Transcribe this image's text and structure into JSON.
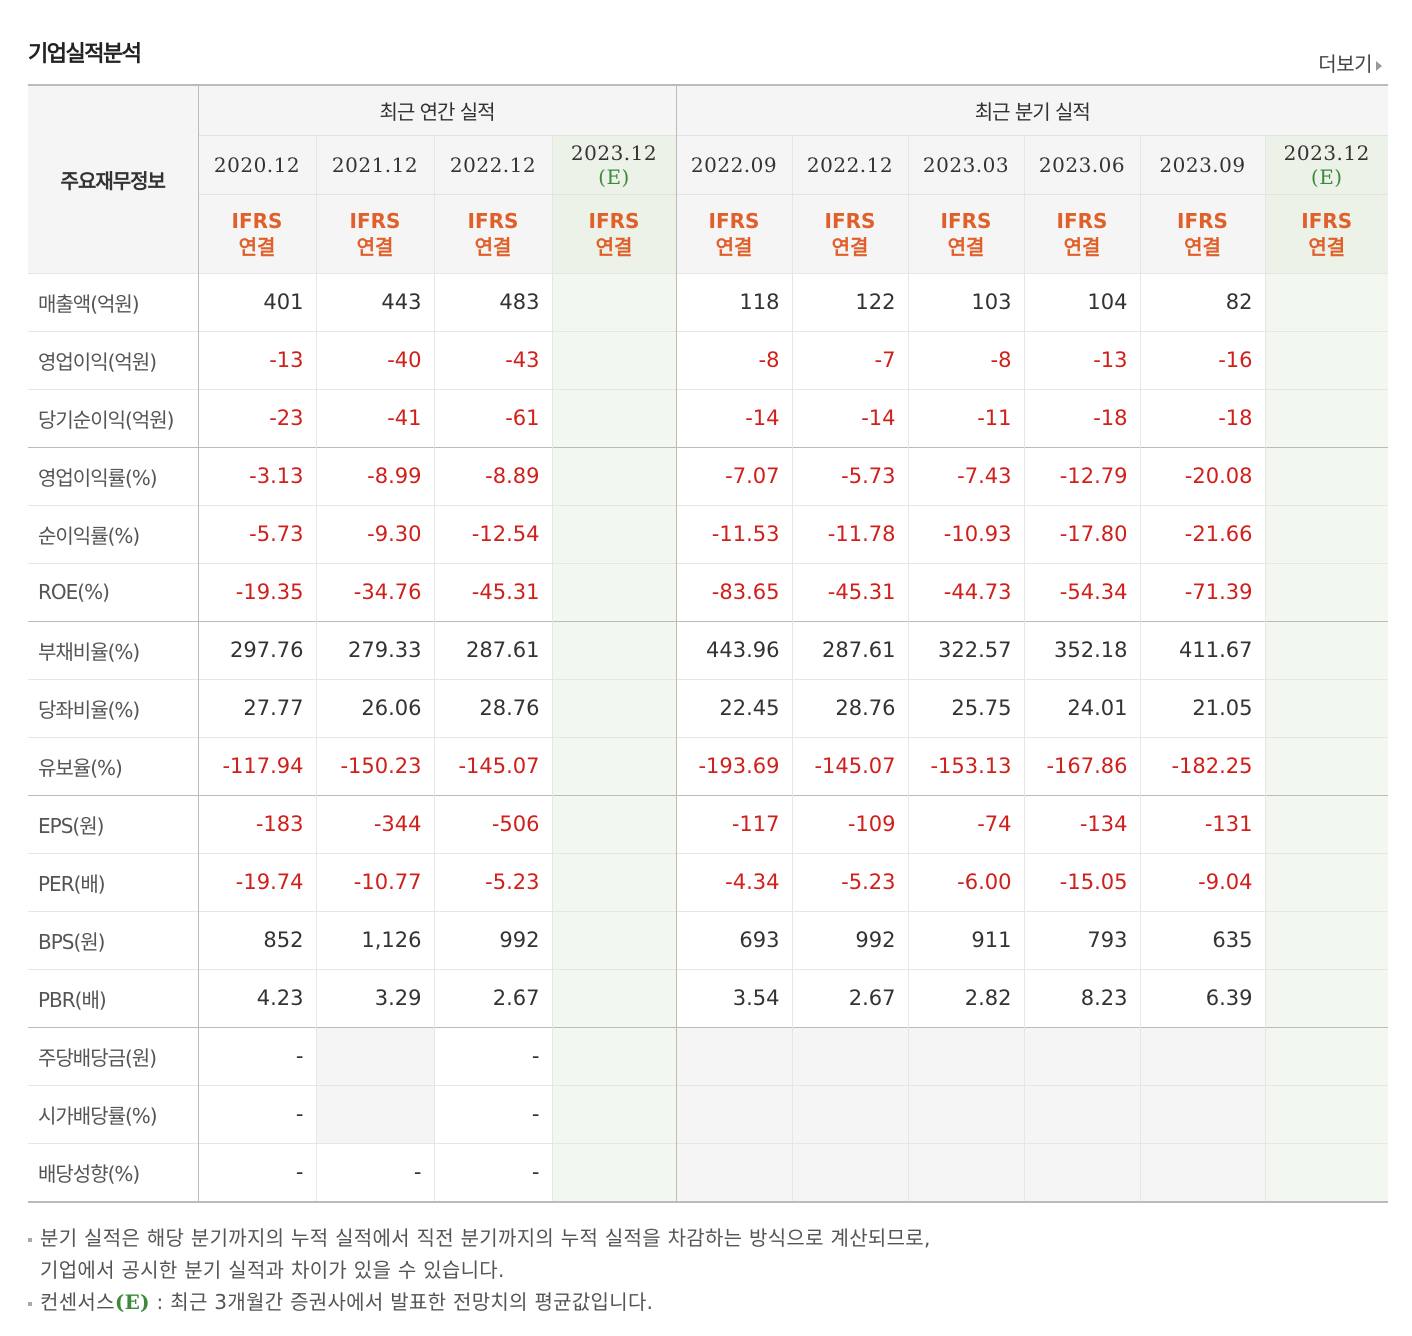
{
  "section_title": "기업실적분석",
  "more_link": "더보기",
  "header": {
    "corner": "주요재무정보",
    "annual_group": "최근 연간 실적",
    "quarter_group": "최근 분기 실적",
    "annual_periods": [
      "2020.12",
      "2021.12",
      "2022.12",
      "2023.12"
    ],
    "annual_est_flag": "(E)",
    "quarter_periods": [
      "2022.09",
      "2022.12",
      "2023.03",
      "2023.06",
      "2023.09",
      "2023.12"
    ],
    "quarter_est_flag": "(E)",
    "basis_line1": "IFRS",
    "basis_line2": "연결"
  },
  "rows": [
    {
      "label": "매출액(억원)",
      "annual": [
        "401",
        "443",
        "483",
        ""
      ],
      "quarter": [
        "118",
        "122",
        "103",
        "104",
        "82",
        ""
      ]
    },
    {
      "label": "영업이익(억원)",
      "annual": [
        "-13",
        "-40",
        "-43",
        ""
      ],
      "quarter": [
        "-8",
        "-7",
        "-8",
        "-13",
        "-16",
        ""
      ]
    },
    {
      "label": "당기순이익(억원)",
      "annual": [
        "-23",
        "-41",
        "-61",
        ""
      ],
      "quarter": [
        "-14",
        "-14",
        "-11",
        "-18",
        "-18",
        ""
      ]
    },
    {
      "label": "영업이익률(%)",
      "annual": [
        "-3.13",
        "-8.99",
        "-8.89",
        ""
      ],
      "quarter": [
        "-7.07",
        "-5.73",
        "-7.43",
        "-12.79",
        "-20.08",
        ""
      ]
    },
    {
      "label": "순이익률(%)",
      "annual": [
        "-5.73",
        "-9.30",
        "-12.54",
        ""
      ],
      "quarter": [
        "-11.53",
        "-11.78",
        "-10.93",
        "-17.80",
        "-21.66",
        ""
      ]
    },
    {
      "label": "ROE(%)",
      "annual": [
        "-19.35",
        "-34.76",
        "-45.31",
        ""
      ],
      "quarter": [
        "-83.65",
        "-45.31",
        "-44.73",
        "-54.34",
        "-71.39",
        ""
      ]
    },
    {
      "label": "부채비율(%)",
      "annual": [
        "297.76",
        "279.33",
        "287.61",
        ""
      ],
      "quarter": [
        "443.96",
        "287.61",
        "322.57",
        "352.18",
        "411.67",
        ""
      ]
    },
    {
      "label": "당좌비율(%)",
      "annual": [
        "27.77",
        "26.06",
        "28.76",
        ""
      ],
      "quarter": [
        "22.45",
        "28.76",
        "25.75",
        "24.01",
        "21.05",
        ""
      ]
    },
    {
      "label": "유보율(%)",
      "annual": [
        "-117.94",
        "-150.23",
        "-145.07",
        ""
      ],
      "quarter": [
        "-193.69",
        "-145.07",
        "-153.13",
        "-167.86",
        "-182.25",
        ""
      ]
    },
    {
      "label": "EPS(원)",
      "annual": [
        "-183",
        "-344",
        "-506",
        ""
      ],
      "quarter": [
        "-117",
        "-109",
        "-74",
        "-134",
        "-131",
        ""
      ]
    },
    {
      "label": "PER(배)",
      "annual": [
        "-19.74",
        "-10.77",
        "-5.23",
        ""
      ],
      "quarter": [
        "-4.34",
        "-5.23",
        "-6.00",
        "-15.05",
        "-9.04",
        ""
      ]
    },
    {
      "label": "BPS(원)",
      "annual": [
        "852",
        "1,126",
        "992",
        ""
      ],
      "quarter": [
        "693",
        "992",
        "911",
        "793",
        "635",
        ""
      ]
    },
    {
      "label": "PBR(배)",
      "annual": [
        "4.23",
        "3.29",
        "2.67",
        ""
      ],
      "quarter": [
        "3.54",
        "2.67",
        "2.82",
        "8.23",
        "6.39",
        ""
      ]
    },
    {
      "label": "주당배당금(원)",
      "annual": [
        "-",
        "",
        "-",
        ""
      ],
      "quarter": [
        "",
        "",
        "",
        "",
        "",
        ""
      ]
    },
    {
      "label": "시가배당률(%)",
      "annual": [
        "-",
        "",
        "-",
        ""
      ],
      "quarter": [
        "",
        "",
        "",
        "",
        "",
        ""
      ]
    },
    {
      "label": "배당성향(%)",
      "annual": [
        "-",
        "-",
        "-",
        ""
      ],
      "quarter": [
        "",
        "",
        "",
        "",
        "",
        ""
      ]
    }
  ],
  "notes": {
    "line1": "분기 실적은 해당 분기까지의 누적 실적에서 직전 분기까지의 누적 실적을 차감하는 방식으로 계산되므로,",
    "line2": "기업에서 공시한 분기 실적과 차이가 있을 수 있습니다.",
    "line3_prefix": "컨센서스",
    "line3_flag": "(E)",
    "line3_suffix": " : 최근 3개월간 증권사에서 발표한 전망치의 평균값입니다."
  },
  "colors": {
    "negative": "#d0201b",
    "basis": "#e0602b",
    "estimate": "#3d8a3d"
  }
}
